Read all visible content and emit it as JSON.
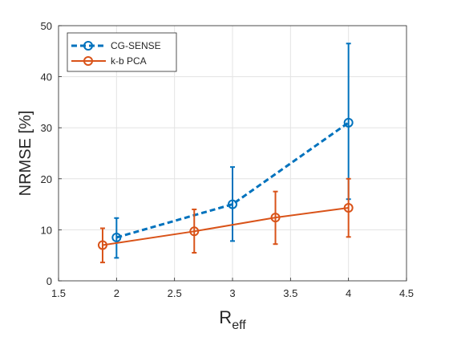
{
  "chart_data": {
    "type": "line",
    "title": "",
    "xlabel_main": "R",
    "xlabel_sub": "eff",
    "ylabel": "NRMSE [%]",
    "xlim": [
      1.5,
      4.5
    ],
    "ylim": [
      0,
      50
    ],
    "xticks": [
      "1.5",
      "2",
      "2.5",
      "3",
      "3.5",
      "4",
      "4.5"
    ],
    "yticks": [
      "0",
      "10",
      "20",
      "30",
      "40",
      "50"
    ],
    "grid": true,
    "legend_position": "top-left",
    "series": [
      {
        "name": "CG-SENSE",
        "color": "#0072BD",
        "line_style": "dashed",
        "marker": "circle",
        "x": [
          2,
          3,
          4
        ],
        "y": [
          8.5,
          15.0,
          31.0
        ],
        "err_low": [
          4.5,
          7.8,
          16.0
        ],
        "err_high": [
          12.3,
          22.3,
          46.5
        ]
      },
      {
        "name": "k-b PCA",
        "color": "#D95319",
        "line_style": "solid",
        "marker": "circle",
        "x": [
          1.88,
          2.67,
          3.37,
          4
        ],
        "y": [
          7.0,
          9.7,
          12.4,
          14.3
        ],
        "err_low": [
          3.6,
          5.5,
          7.2,
          8.6
        ],
        "err_high": [
          10.3,
          14.0,
          17.5,
          20.0
        ]
      }
    ]
  }
}
